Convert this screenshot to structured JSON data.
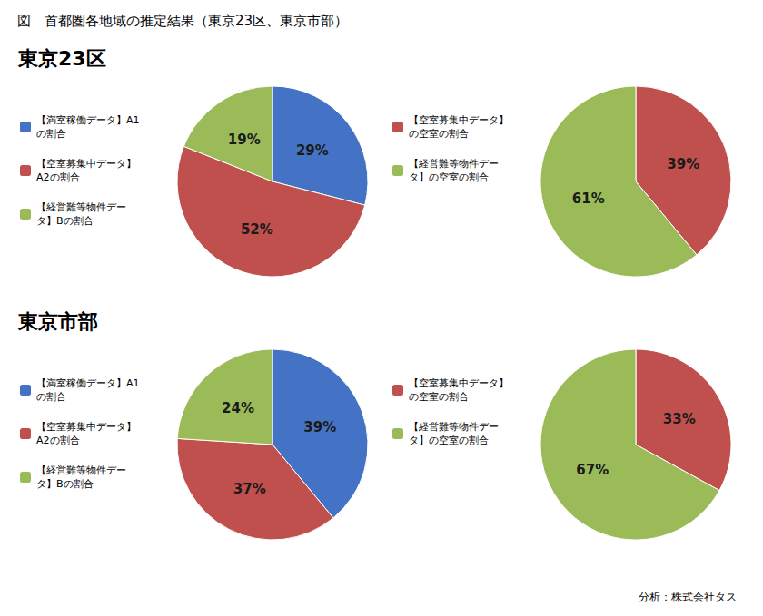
{
  "title": "図　首都圏各地域の推定結果（東京23区、東京市部）",
  "annotations": [
    "分析：株式会社タス"
  ],
  "chart_data": [
    {
      "type": "pie",
      "subtitle": "東京23区",
      "categories": [
        "【満室稼働データ】A1\nの割合",
        "【空室募集中データ】\nA2の割合",
        "【経営難等物件デー\nタ】Bの割合"
      ],
      "values": [
        29,
        52,
        19
      ],
      "value_labels": [
        "29%",
        "52%",
        "19%"
      ],
      "colors": [
        "#4472C4",
        "#C0504D",
        "#9BBB59"
      ],
      "data_labels": true,
      "legend": "left"
    },
    {
      "type": "pie",
      "categories": [
        "【空室募集中データ】\nの空室の割合",
        "【経営難等物件デー\nタ】の空室の割合"
      ],
      "values": [
        39,
        61
      ],
      "value_labels": [
        "39%",
        "61%"
      ],
      "colors": [
        "#C0504D",
        "#9BBB59"
      ],
      "data_labels": true,
      "legend": "left"
    },
    {
      "type": "pie",
      "subtitle": "東京市部",
      "categories": [
        "【満室稼働データ】A1\nの割合",
        "【空室募集中データ】\nA2の割合",
        "【経営難等物件デー\nタ】Bの割合"
      ],
      "values": [
        39,
        37,
        24
      ],
      "value_labels": [
        "39%",
        "37%",
        "24%"
      ],
      "colors": [
        "#4472C4",
        "#C0504D",
        "#9BBB59"
      ],
      "data_labels": true,
      "legend": "left"
    },
    {
      "type": "pie",
      "categories": [
        "【空室募集中データ】\nの空室の割合",
        "【経営難等物件デー\nタ】の空室の割合"
      ],
      "values": [
        33,
        67
      ],
      "value_labels": [
        "33%",
        "67%"
      ],
      "colors": [
        "#C0504D",
        "#9BBB59"
      ],
      "data_labels": true,
      "legend": "left"
    }
  ]
}
